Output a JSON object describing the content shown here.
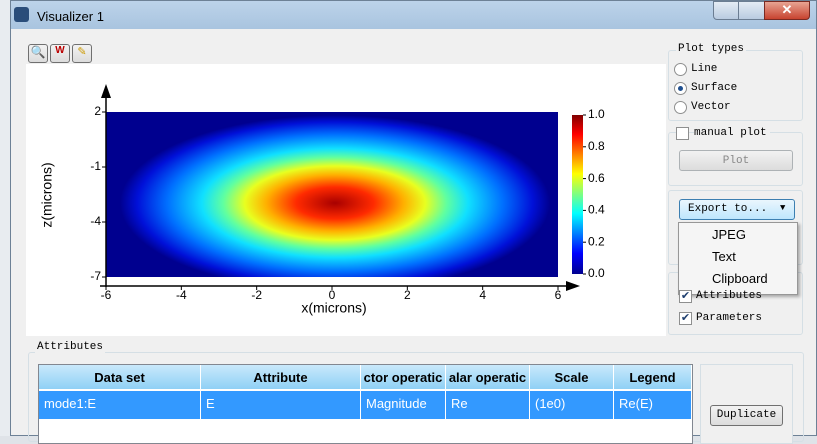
{
  "window": {
    "title": "Visualizer 1"
  },
  "plot": {
    "xlabel": "x(microns)",
    "ylabel": "z(microns)",
    "xlim": [
      -6,
      6
    ],
    "ylim": [
      -7,
      2
    ],
    "xticks": [
      -6,
      -4,
      -2,
      0,
      2,
      4,
      6
    ],
    "yticks": [
      2,
      -1,
      -4,
      -7
    ],
    "colorbar": {
      "lim": [
        0,
        1
      ],
      "ticks": [
        {
          "value": 1,
          "label": "1.0"
        },
        {
          "value": 0.8,
          "label": "0.8"
        },
        {
          "value": 0.6,
          "label": "0.6"
        },
        {
          "value": 0.4,
          "label": "0.4"
        },
        {
          "value": 0.2,
          "label": "0.2"
        },
        {
          "value": 0,
          "label": "0.0"
        }
      ]
    }
  },
  "panel": {
    "plot_types": {
      "title": "Plot types",
      "options": [
        "Line",
        "Surface",
        "Vector"
      ],
      "selected": "Surface"
    },
    "manual_plot": "manual plot",
    "plot_button": "Plot",
    "export_button": "Export to...",
    "export_menu": [
      "JPEG",
      "Text",
      "Clipboard"
    ],
    "checkboxes": [
      "Attributes",
      "Parameters"
    ]
  },
  "attributes": {
    "title": "Attributes",
    "columns": [
      "Data set",
      "Attribute",
      "ctor operatic",
      "alar operatic",
      "Scale",
      "Legend"
    ],
    "rows": [
      [
        "mode1:E",
        "E",
        "Magnitude",
        "Re",
        "(1e0)",
        "Re(E)"
      ]
    ],
    "duplicate_button": "Duplicate"
  }
}
